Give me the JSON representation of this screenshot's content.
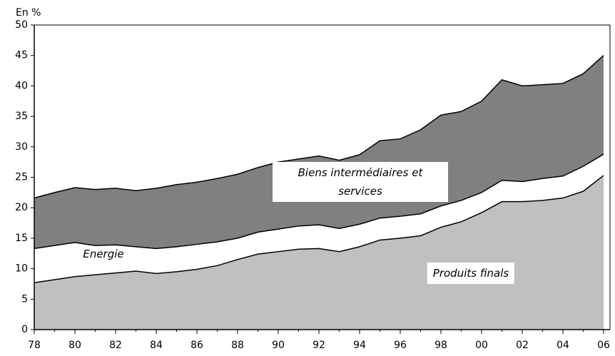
{
  "chart_data": {
    "type": "stacked_area",
    "y_label": "En %",
    "categories": [
      "78",
      null,
      "80",
      null,
      "82",
      null,
      "84",
      null,
      "86",
      null,
      "88",
      null,
      "90",
      null,
      "92",
      null,
      "94",
      null,
      "96",
      null,
      "98",
      null,
      "00",
      null,
      "02",
      null,
      "04",
      null,
      "06"
    ],
    "series": [
      {
        "name": "Produits finals",
        "color": "#c0c0c0",
        "values": [
          7.7,
          8.2,
          8.7,
          9.0,
          9.3,
          9.6,
          9.2,
          9.5,
          9.9,
          10.5,
          11.5,
          12.4,
          12.8,
          13.2,
          13.3,
          12.8,
          13.6,
          14.7,
          15.0,
          15.4,
          16.8,
          17.7,
          19.2,
          21.0,
          21.0,
          21.2,
          21.6,
          22.7,
          25.3
        ]
      },
      {
        "name": "Energie",
        "color": "#ffffff",
        "values": [
          5.6,
          5.6,
          5.6,
          4.8,
          4.6,
          4.0,
          4.1,
          4.1,
          4.1,
          3.9,
          3.5,
          3.6,
          3.7,
          3.8,
          3.9,
          3.8,
          3.7,
          3.6,
          3.6,
          3.6,
          3.5,
          3.5,
          3.3,
          3.5,
          3.3,
          3.6,
          3.6,
          4.1,
          3.5
        ]
      },
      {
        "name": "Biens intermédiaires et services",
        "color": "#808080",
        "values": [
          8.3,
          8.7,
          9.0,
          9.2,
          9.3,
          9.2,
          9.9,
          10.2,
          10.2,
          10.4,
          10.5,
          10.6,
          11.0,
          11.0,
          11.3,
          11.2,
          11.4,
          12.7,
          12.7,
          13.8,
          14.9,
          14.6,
          15.0,
          16.5,
          15.7,
          15.4,
          15.2,
          15.2,
          16.2
        ]
      }
    ],
    "ylim": [
      0,
      50
    ],
    "yticks": [
      0,
      5,
      10,
      15,
      20,
      25,
      30,
      35,
      40,
      45,
      50
    ]
  }
}
